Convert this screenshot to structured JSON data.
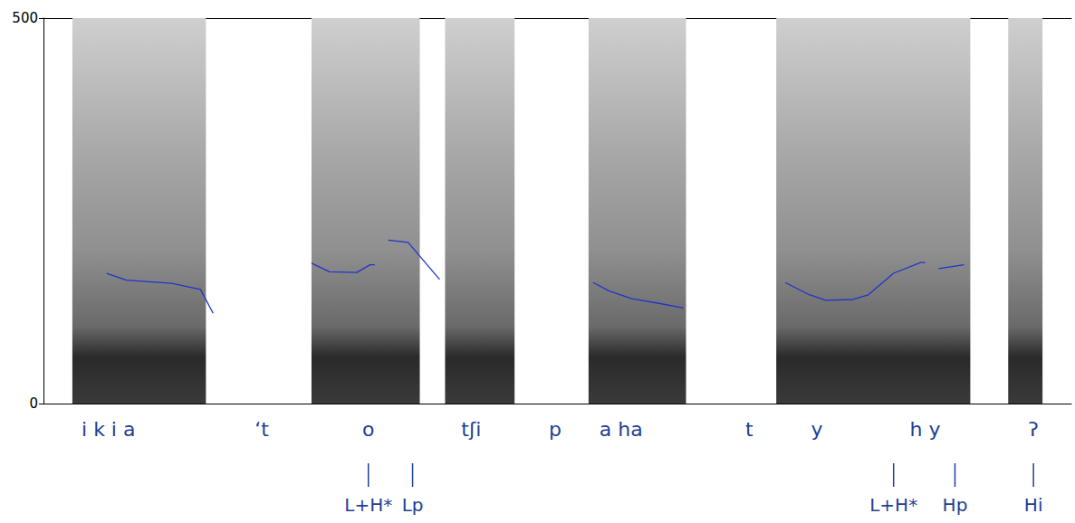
{
  "chart_data": {
    "type": "line",
    "color": "#2233cc",
    "xlim": [
      0,
      1.139
    ],
    "ylim": [
      0,
      500
    ],
    "yticks": [
      0,
      500
    ],
    "tick_labels": "y",
    "grid": false,
    "x": [
      0.07,
      0.092,
      0.142,
      0.174,
      0.188,
      0.24,
      0.297,
      0.317,
      0.347,
      0.362,
      0.367,
      0.375,
      0.382,
      0.404,
      0.439,
      0.5,
      0.609,
      0.627,
      0.652,
      0.682,
      0.709,
      0.76,
      0.822,
      0.847,
      0.867,
      0.897,
      0.914,
      0.942,
      0.972,
      0.977,
      0.985,
      0.992,
      1.02
    ],
    "values": [
      169,
      160,
      156,
      148,
      117,
      null,
      182,
      171,
      170,
      180,
      180,
      null,
      212,
      209,
      161,
      null,
      157,
      146,
      136,
      130,
      124,
      null,
      157,
      142,
      134,
      135,
      141,
      169,
      183,
      183,
      null,
      175,
      180
    ],
    "spectrogram_regions": [
      [
        0.032,
        0.18
      ],
      [
        0.297,
        0.417
      ],
      [
        0.445,
        0.522
      ],
      [
        0.604,
        0.712
      ],
      [
        0.812,
        1.027
      ],
      [
        1.069,
        1.107
      ]
    ],
    "segments": [
      {
        "x": 0.072,
        "label": "i k i a"
      },
      {
        "x": 0.242,
        "label": "‘t"
      },
      {
        "x": 0.36,
        "label": "o"
      },
      {
        "x": 0.474,
        "label": "tʃi"
      },
      {
        "x": 0.567,
        "label": "p"
      },
      {
        "x": 0.64,
        "label": "a ha"
      },
      {
        "x": 0.782,
        "label": "t"
      },
      {
        "x": 0.857,
        "label": "y"
      },
      {
        "x": 0.977,
        "label": "h y"
      },
      {
        "x": 1.097,
        "label": "ʔ"
      }
    ],
    "tones": [
      {
        "x": 0.36,
        "label": "L+H*"
      },
      {
        "x": 0.409,
        "label": "Lp"
      },
      {
        "x": 0.942,
        "label": "L+H*"
      },
      {
        "x": 1.01,
        "label": "Hp"
      },
      {
        "x": 1.097,
        "label": "Hi"
      }
    ]
  }
}
